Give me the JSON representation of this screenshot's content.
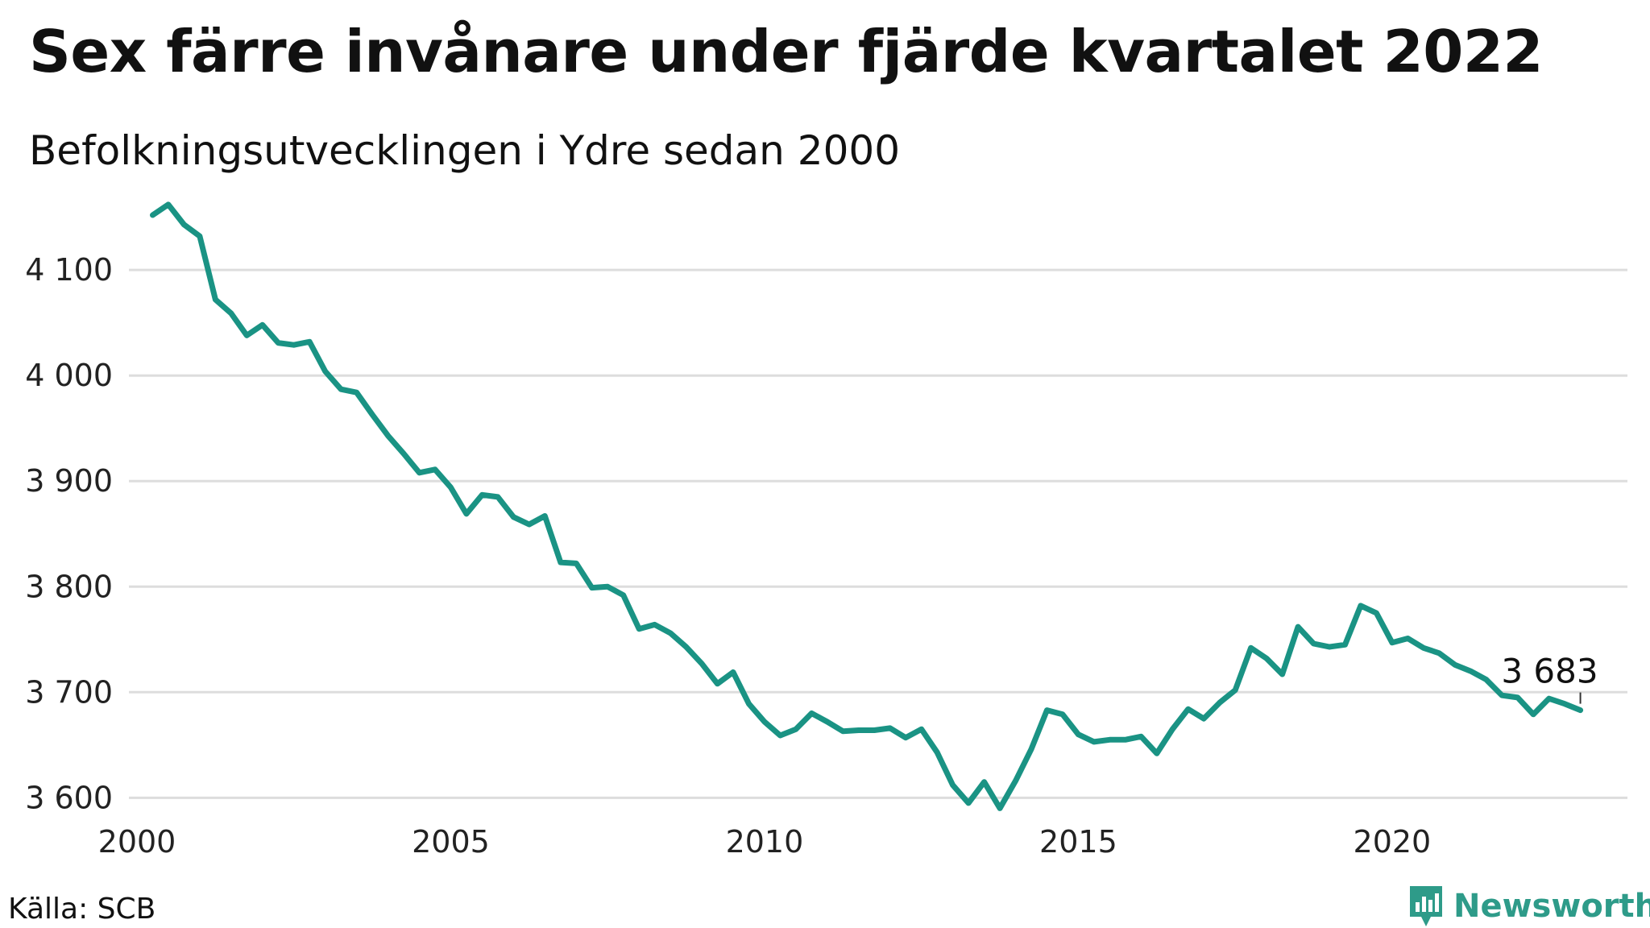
{
  "header": {
    "title": "Sex färre invånare under fjärde kvartalet 2022",
    "subtitle": "Befolkningsutvecklingen i Ydre sedan 2000"
  },
  "footer": {
    "source": "Källa: SCB",
    "brand": "Newsworthy"
  },
  "colors": {
    "line": "#1a9384",
    "grid": "#dddddd",
    "brand": "#2e9b89"
  },
  "chart_data": {
    "type": "line",
    "title": "Sex färre invånare under fjärde kvartalet 2022",
    "subtitle": "Befolkningsutvecklingen i Ydre sedan 2000",
    "xlabel": "",
    "ylabel": "",
    "x_start": 2000.25,
    "x_step": 0.25,
    "xlim": [
      2000,
      2023.75
    ],
    "ylim": [
      3585,
      4165
    ],
    "x_ticks": [
      2000,
      2005,
      2010,
      2015,
      2020
    ],
    "x_tick_labels": [
      "2000",
      "2005",
      "2010",
      "2015",
      "2020"
    ],
    "y_ticks": [
      3600,
      3700,
      3800,
      3900,
      4000,
      4100
    ],
    "y_tick_labels": [
      "3 600",
      "3 700",
      "3 800",
      "3 900",
      "4 000",
      "4 100"
    ],
    "grid": true,
    "legend": "none",
    "series": [
      {
        "values": [
          4152,
          4162,
          4143,
          4132,
          4072,
          4059,
          4038,
          4048,
          4031,
          4029,
          4032,
          4004,
          3987,
          3984,
          3963,
          3943,
          3926,
          3908,
          3911,
          3894,
          3869,
          3887,
          3885,
          3866,
          3859,
          3867,
          3823,
          3822,
          3799,
          3800,
          3792,
          3760,
          3764,
          3756,
          3743,
          3727,
          3708,
          3719,
          3689,
          3672,
          3659,
          3665,
          3680,
          3672,
          3663,
          3664,
          3664,
          3666,
          3657,
          3665,
          3643,
          3612,
          3595,
          3615,
          3590,
          3616,
          3646,
          3683,
          3679,
          3660,
          3653,
          3655,
          3655,
          3658,
          3642,
          3665,
          3684,
          3675,
          3690,
          3702,
          3742,
          3732,
          3717,
          3762,
          3746,
          3743,
          3745,
          3782,
          3775,
          3747,
          3751,
          3742,
          3737,
          3726,
          3720,
          3712,
          3697,
          3695,
          3679,
          3694,
          3689,
          3683
        ]
      }
    ],
    "end_label": "3 683"
  }
}
